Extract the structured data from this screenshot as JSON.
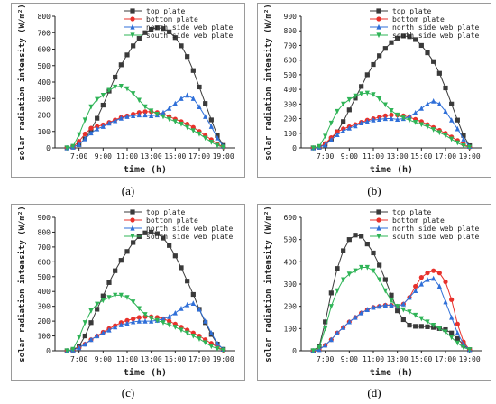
{
  "chart_data": [
    {
      "type": "line",
      "panel_label": "(a)",
      "xlabel": "time (h)",
      "ylabel": "solar radiation intensity (W/m²)",
      "xlim": [
        5,
        20
      ],
      "ylim": [
        0,
        800
      ],
      "yticks": [
        0,
        100,
        200,
        300,
        400,
        500,
        600,
        700,
        800
      ],
      "xticks": [
        7,
        9,
        11,
        13,
        15,
        17,
        19
      ],
      "xtick_labels": [
        "7:00",
        "9:00",
        "11:00",
        "13:00",
        "15:00",
        "17:00",
        "19:00"
      ],
      "x": [
        6,
        6.5,
        7,
        7.5,
        8,
        8.5,
        9,
        9.5,
        10,
        10.5,
        11,
        11.5,
        12,
        12.5,
        13,
        13.5,
        14,
        14.5,
        15,
        15.5,
        16,
        16.5,
        17,
        17.5,
        18,
        18.5,
        19
      ],
      "series": [
        {
          "name": "top plate",
          "color": "#3a3a3a",
          "marker": "square",
          "values": [
            0,
            5,
            20,
            55,
            110,
            180,
            260,
            345,
            430,
            505,
            565,
            620,
            665,
            700,
            720,
            730,
            725,
            705,
            670,
            620,
            555,
            470,
            370,
            270,
            170,
            75,
            15
          ]
        },
        {
          "name": "bottom plate",
          "color": "#e8312b",
          "marker": "circle",
          "values": [
            0,
            5,
            40,
            85,
            120,
            130,
            140,
            155,
            170,
            185,
            195,
            205,
            215,
            220,
            220,
            215,
            205,
            190,
            175,
            160,
            145,
            125,
            100,
            75,
            50,
            25,
            5
          ]
        },
        {
          "name": "north side web plate",
          "color": "#2f6fd8",
          "marker": "triangle-up",
          "values": [
            0,
            5,
            20,
            55,
            90,
            115,
            130,
            150,
            165,
            180,
            190,
            195,
            200,
            200,
            195,
            200,
            215,
            240,
            270,
            300,
            320,
            300,
            250,
            190,
            130,
            60,
            10
          ]
        },
        {
          "name": "south side web plate",
          "color": "#2fb457",
          "marker": "triangle-down",
          "values": [
            0,
            10,
            80,
            170,
            250,
            295,
            320,
            350,
            370,
            375,
            360,
            330,
            290,
            250,
            225,
            205,
            190,
            175,
            160,
            145,
            125,
            105,
            85,
            60,
            35,
            15,
            5
          ]
        }
      ]
    },
    {
      "type": "line",
      "panel_label": "(b)",
      "xlabel": "time (h)",
      "ylabel": "solar radiation intensity (W/m²)",
      "xlim": [
        5,
        20
      ],
      "ylim": [
        0,
        900
      ],
      "yticks": [
        0,
        100,
        200,
        300,
        400,
        500,
        600,
        700,
        800,
        900
      ],
      "xticks": [
        7,
        9,
        11,
        13,
        15,
        17,
        19
      ],
      "xtick_labels": [
        "7:00",
        "9:00",
        "11:00",
        "13:00",
        "15:00",
        "17:00",
        "19:00"
      ],
      "x": [
        6,
        6.5,
        7,
        7.5,
        8,
        8.5,
        9,
        9.5,
        10,
        10.5,
        11,
        11.5,
        12,
        12.5,
        13,
        13.5,
        14,
        14.5,
        15,
        15.5,
        16,
        16.5,
        17,
        17.5,
        18,
        18.5,
        19
      ],
      "series": [
        {
          "name": "top plate",
          "color": "#3a3a3a",
          "marker": "square",
          "values": [
            0,
            5,
            25,
            60,
            110,
            180,
            260,
            340,
            420,
            500,
            570,
            630,
            680,
            720,
            750,
            765,
            760,
            740,
            700,
            650,
            590,
            510,
            410,
            300,
            190,
            85,
            15
          ]
        },
        {
          "name": "bottom plate",
          "color": "#e8312b",
          "marker": "circle",
          "values": [
            0,
            5,
            30,
            70,
            110,
            130,
            145,
            160,
            175,
            190,
            200,
            210,
            220,
            225,
            225,
            220,
            210,
            195,
            180,
            160,
            140,
            120,
            100,
            75,
            50,
            25,
            5
          ]
        },
        {
          "name": "north side web plate",
          "color": "#2f6fd8",
          "marker": "triangle-up",
          "values": [
            0,
            5,
            20,
            55,
            90,
            115,
            135,
            150,
            170,
            180,
            190,
            195,
            200,
            200,
            195,
            200,
            215,
            240,
            270,
            300,
            320,
            300,
            250,
            190,
            130,
            60,
            10
          ]
        },
        {
          "name": "south side web plate",
          "color": "#2fb457",
          "marker": "triangle-down",
          "values": [
            0,
            10,
            80,
            170,
            250,
            300,
            330,
            355,
            370,
            375,
            365,
            335,
            295,
            255,
            225,
            205,
            190,
            175,
            160,
            145,
            125,
            105,
            85,
            60,
            35,
            15,
            5
          ]
        }
      ]
    },
    {
      "type": "line",
      "panel_label": "(c)",
      "xlabel": "time (h)",
      "ylabel": "solar radiation intensity (W/m²)",
      "xlim": [
        5,
        20
      ],
      "ylim": [
        0,
        900
      ],
      "yticks": [
        0,
        100,
        200,
        300,
        400,
        500,
        600,
        700,
        800,
        900
      ],
      "xticks": [
        7,
        9,
        11,
        13,
        15,
        17,
        19
      ],
      "xtick_labels": [
        "7:00",
        "9:00",
        "11:00",
        "13:00",
        "15:00",
        "17:00",
        "19:00"
      ],
      "x": [
        6,
        6.5,
        7,
        7.5,
        8,
        8.5,
        9,
        9.5,
        10,
        10.5,
        11,
        11.5,
        12,
        12.5,
        13,
        13.5,
        14,
        14.5,
        15,
        15.5,
        16,
        16.5,
        17,
        17.5,
        18,
        18.5,
        19
      ],
      "series": [
        {
          "name": "top plate",
          "color": "#3a3a3a",
          "marker": "square",
          "values": [
            0,
            5,
            30,
            100,
            190,
            280,
            370,
            460,
            540,
            610,
            670,
            730,
            770,
            795,
            800,
            790,
            760,
            710,
            640,
            560,
            470,
            380,
            280,
            190,
            110,
            45,
            10
          ]
        },
        {
          "name": "bottom plate",
          "color": "#e8312b",
          "marker": "circle",
          "values": [
            0,
            5,
            20,
            45,
            75,
            100,
            125,
            150,
            170,
            190,
            205,
            215,
            225,
            230,
            230,
            225,
            215,
            200,
            180,
            160,
            140,
            120,
            100,
            75,
            50,
            25,
            5
          ]
        },
        {
          "name": "north side web plate",
          "color": "#2f6fd8",
          "marker": "triangle-up",
          "values": [
            0,
            5,
            20,
            45,
            75,
            100,
            120,
            140,
            160,
            175,
            185,
            195,
            200,
            200,
            200,
            205,
            215,
            230,
            255,
            285,
            310,
            320,
            280,
            200,
            120,
            50,
            10
          ]
        },
        {
          "name": "south side web plate",
          "color": "#2fb457",
          "marker": "triangle-down",
          "values": [
            0,
            10,
            90,
            190,
            270,
            315,
            340,
            360,
            375,
            375,
            360,
            330,
            285,
            245,
            220,
            205,
            190,
            175,
            160,
            140,
            120,
            100,
            80,
            55,
            30,
            15,
            5
          ]
        }
      ]
    },
    {
      "type": "line",
      "panel_label": "(d)",
      "xlabel": "time (h)",
      "ylabel": "solar radiation intensity (W/m²)",
      "xlim": [
        5,
        20
      ],
      "ylim": [
        0,
        600
      ],
      "yticks": [
        0,
        100,
        200,
        300,
        400,
        500,
        600
      ],
      "xticks": [
        7,
        9,
        11,
        13,
        15,
        17,
        19
      ],
      "xtick_labels": [
        "7:00",
        "9:00",
        "11:00",
        "13:00",
        "15:00",
        "17:00",
        "19:00"
      ],
      "x": [
        6,
        6.5,
        7,
        7.5,
        8,
        8.5,
        9,
        9.5,
        10,
        10.5,
        11,
        11.5,
        12,
        12.5,
        13,
        13.5,
        14,
        14.5,
        15,
        15.5,
        16,
        16.5,
        17,
        17.5,
        18,
        18.5,
        19
      ],
      "series": [
        {
          "name": "top plate",
          "color": "#3a3a3a",
          "marker": "square",
          "values": [
            0,
            20,
            130,
            260,
            370,
            450,
            500,
            520,
            515,
            480,
            440,
            385,
            320,
            250,
            180,
            140,
            115,
            110,
            110,
            108,
            105,
            100,
            95,
            80,
            55,
            25,
            5
          ]
        },
        {
          "name": "bottom plate",
          "color": "#e8312b",
          "marker": "circle",
          "values": [
            0,
            5,
            25,
            50,
            80,
            105,
            130,
            150,
            170,
            185,
            195,
            200,
            205,
            205,
            200,
            210,
            240,
            290,
            330,
            350,
            360,
            350,
            310,
            230,
            120,
            40,
            5
          ]
        },
        {
          "name": "north side web plate",
          "color": "#2f6fd8",
          "marker": "triangle-up",
          "values": [
            0,
            5,
            25,
            50,
            80,
            105,
            130,
            150,
            170,
            185,
            195,
            200,
            205,
            205,
            200,
            210,
            240,
            270,
            300,
            320,
            325,
            290,
            220,
            150,
            80,
            30,
            5
          ]
        },
        {
          "name": "south side web plate",
          "color": "#2fb457",
          "marker": "triangle-down",
          "values": [
            0,
            15,
            100,
            200,
            270,
            320,
            345,
            360,
            375,
            375,
            360,
            320,
            270,
            225,
            200,
            185,
            175,
            160,
            145,
            130,
            115,
            100,
            85,
            60,
            35,
            15,
            5
          ]
        }
      ]
    }
  ]
}
